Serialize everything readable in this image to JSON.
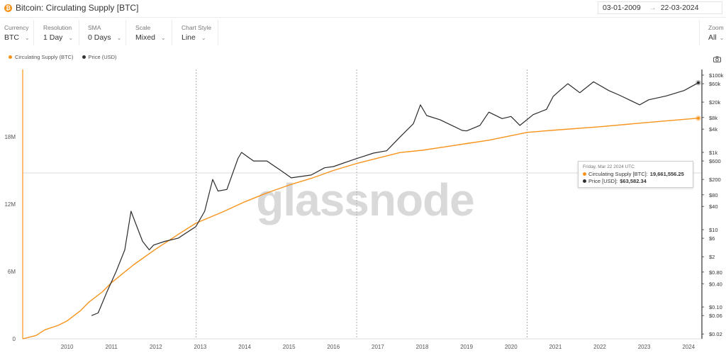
{
  "header": {
    "title": "Bitcoin: Circulating Supply [BTC]",
    "coin_glyph": "₿",
    "date_from": "03-01-2009",
    "date_to": "22-03-2024",
    "arrow": "→"
  },
  "controls": [
    {
      "label": "Currency",
      "value": "BTC"
    },
    {
      "label": "Resolution",
      "value": "1 Day"
    },
    {
      "label": "SMA",
      "value": "0 Days"
    },
    {
      "label": "Scale",
      "value": "Mixed"
    },
    {
      "label": "Chart Style",
      "value": "Line"
    }
  ],
  "zoom": {
    "label": "Zoom",
    "value": "All"
  },
  "legend": [
    {
      "label": "Circulating Supply (BTC)",
      "color": "#f7931a"
    },
    {
      "label": "Price (USD)",
      "color": "#333333"
    }
  ],
  "watermark": "glassnode",
  "tooltip": {
    "date": "Friday, Mar 22 2024 UTC",
    "rows": [
      {
        "label": "Circulating Supply [BTC]:",
        "value": "19,661,556.25",
        "color": "#f7931a"
      },
      {
        "label": "Price [USD]:",
        "value": "$63,582.34",
        "color": "#333333"
      }
    ]
  },
  "colors": {
    "supply": "#f7931a",
    "price": "#2b2b2b",
    "grid": "#e6e6e6"
  },
  "chart_data": {
    "type": "line",
    "x_ticks": [
      "2010",
      "2011",
      "2012",
      "2013",
      "2014",
      "2015",
      "2016",
      "2017",
      "2018",
      "2019",
      "2020",
      "2021",
      "2022",
      "2023",
      "2024"
    ],
    "left_axis": {
      "label": "",
      "ticks": [
        "0",
        "6M",
        "12M",
        "18M"
      ],
      "range": [
        0,
        24000000
      ]
    },
    "right_axis": {
      "label": "",
      "scale": "log",
      "ticks": [
        "$100k",
        "$60k",
        "$20k",
        "$8k",
        "$4k",
        "$1k",
        "$600",
        "$200",
        "$80",
        "$40",
        "$10",
        "$6",
        "$2",
        "$0.80",
        "$0.40",
        "$0.10",
        "$0.06",
        "$0.02"
      ],
      "range": [
        0.015,
        140000
      ]
    },
    "halving_markers": [
      "2012-11-28",
      "2016-07-09",
      "2020-05-11"
    ],
    "series": [
      {
        "name": "Circulating Supply (BTC)",
        "axis": "left",
        "x": [
          2009.0,
          2009.3,
          2009.5,
          2009.8,
          2010.0,
          2010.3,
          2010.5,
          2010.8,
          2011.0,
          2011.5,
          2012.0,
          2012.5,
          2012.9,
          2013.5,
          2014.0,
          2014.5,
          2015.0,
          2015.5,
          2016.0,
          2016.5,
          2017.0,
          2017.5,
          2018.0,
          2018.5,
          2019.0,
          2019.5,
          2020.0,
          2020.37,
          2021.0,
          2022.0,
          2023.0,
          2024.22
        ],
        "values": [
          0,
          300000,
          800000,
          1200000,
          1600000,
          2500000,
          3300000,
          4200000,
          5000000,
          6600000,
          8000000,
          9300000,
          10300000,
          11300000,
          12200000,
          13000000,
          13700000,
          14300000,
          15000000,
          15600000,
          16100000,
          16600000,
          16800000,
          17100000,
          17400000,
          17700000,
          18100000,
          18400000,
          18600000,
          18900000,
          19250000,
          19661556.25
        ]
      },
      {
        "name": "Price (USD)",
        "axis": "right",
        "x": [
          2010.55,
          2010.7,
          2010.9,
          2011.1,
          2011.3,
          2011.44,
          2011.55,
          2011.7,
          2011.85,
          2011.95,
          2012.2,
          2012.5,
          2012.9,
          2013.1,
          2013.28,
          2013.4,
          2013.6,
          2013.85,
          2013.93,
          2014.2,
          2014.5,
          2014.8,
          2015.05,
          2015.5,
          2015.8,
          2016.0,
          2016.45,
          2016.9,
          2017.2,
          2017.5,
          2017.8,
          2017.96,
          2018.1,
          2018.4,
          2018.9,
          2019.0,
          2019.3,
          2019.5,
          2019.8,
          2020.0,
          2020.2,
          2020.5,
          2020.8,
          2020.95,
          2021.1,
          2021.28,
          2021.55,
          2021.86,
          2022.2,
          2022.45,
          2022.9,
          2023.1,
          2023.5,
          2023.9,
          2024.22
        ],
        "values": [
          0.06,
          0.07,
          0.25,
          0.8,
          3,
          30,
          14,
          5,
          3,
          4,
          5,
          6,
          12,
          30,
          200,
          100,
          110,
          700,
          1000,
          600,
          600,
          350,
          220,
          260,
          400,
          430,
          650,
          960,
          1100,
          2500,
          5500,
          17000,
          9000,
          7000,
          3700,
          3600,
          5000,
          11000,
          7500,
          8500,
          5000,
          9500,
          13000,
          28000,
          40000,
          60000,
          35000,
          67000,
          40000,
          30000,
          17000,
          23000,
          29000,
          40000,
          63582.34
        ]
      }
    ]
  }
}
